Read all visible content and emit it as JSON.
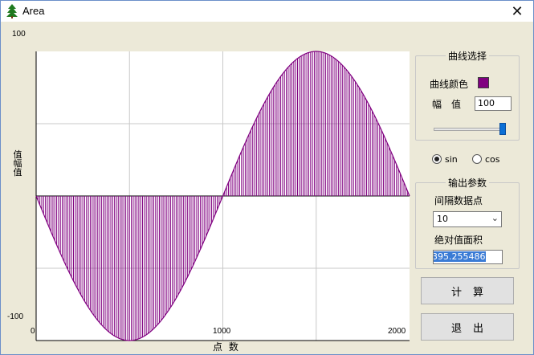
{
  "window": {
    "title": "Area",
    "close_glyph": "✕",
    "app_icon": "tree-icon"
  },
  "chart_data": {
    "type": "area",
    "function": "sin",
    "amplitude": 100,
    "x_range": [
      0,
      2000
    ],
    "ylim": [
      -100,
      100
    ],
    "x_ticks": [
      "0",
      "1000",
      "2000"
    ],
    "y_ticks": [
      "100",
      "-100"
    ],
    "xlabel": "点 数",
    "ylabel": "值\n幅\n值",
    "sample_interval": 10,
    "fill_color": "#800080",
    "grid": true
  },
  "panel": {
    "curve_group_title": "曲线选择",
    "curve_color_label": "曲线颜色",
    "curve_color": "#800080",
    "amplitude_label": "幅　值",
    "amplitude_value": "100",
    "slider_value": 100,
    "radio_sin_label": "sin",
    "radio_cos_label": "cos",
    "radio_selected": "sin",
    "output_group_title": "输出参数",
    "interval_label": "间隔数据点",
    "interval_value": "10",
    "area_label": "绝对值面积",
    "area_value": "395.255486",
    "calc_button": "计算",
    "exit_button": "退出"
  }
}
